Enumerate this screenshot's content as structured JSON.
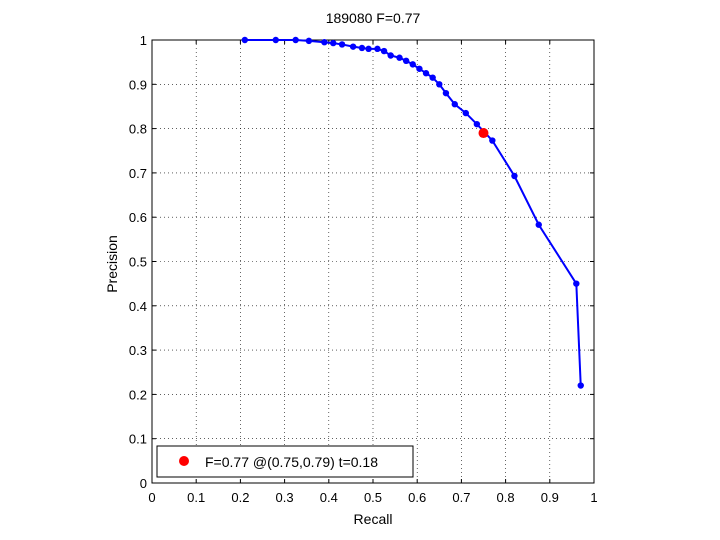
{
  "chart_data": {
    "type": "line",
    "title": "189080 F=0.77",
    "xlabel": "Recall",
    "ylabel": "Precision",
    "xlim": [
      0,
      1
    ],
    "ylim": [
      0,
      1
    ],
    "grid": true,
    "xticks": [
      "0",
      "0.1",
      "0.2",
      "0.3",
      "0.4",
      "0.5",
      "0.6",
      "0.7",
      "0.8",
      "0.9",
      "1"
    ],
    "yticks": [
      "0",
      "0.1",
      "0.2",
      "0.3",
      "0.4",
      "0.5",
      "0.6",
      "0.7",
      "0.8",
      "0.9",
      "1"
    ],
    "series": [
      {
        "color": "#0000ff",
        "marker": "dot",
        "x": [
          0.21,
          0.28,
          0.325,
          0.355,
          0.39,
          0.41,
          0.43,
          0.455,
          0.475,
          0.49,
          0.51,
          0.525,
          0.54,
          0.56,
          0.575,
          0.59,
          0.605,
          0.62,
          0.635,
          0.65,
          0.665,
          0.685,
          0.71,
          0.735,
          0.77,
          0.82,
          0.875,
          0.96,
          0.97
        ],
        "y": [
          1.0,
          1.0,
          1.0,
          0.998,
          0.995,
          0.993,
          0.99,
          0.985,
          0.982,
          0.98,
          0.98,
          0.975,
          0.965,
          0.96,
          0.953,
          0.945,
          0.935,
          0.925,
          0.915,
          0.9,
          0.88,
          0.855,
          0.835,
          0.81,
          0.773,
          0.693,
          0.583,
          0.45,
          0.22
        ]
      }
    ],
    "highlight": {
      "x": 0.75,
      "y": 0.79,
      "color": "#ff0000"
    },
    "legend": {
      "position": "bottom-left",
      "text": "F=0.77 @(0.75,0.79) t=0.18",
      "marker_color": "#ff0000"
    }
  }
}
